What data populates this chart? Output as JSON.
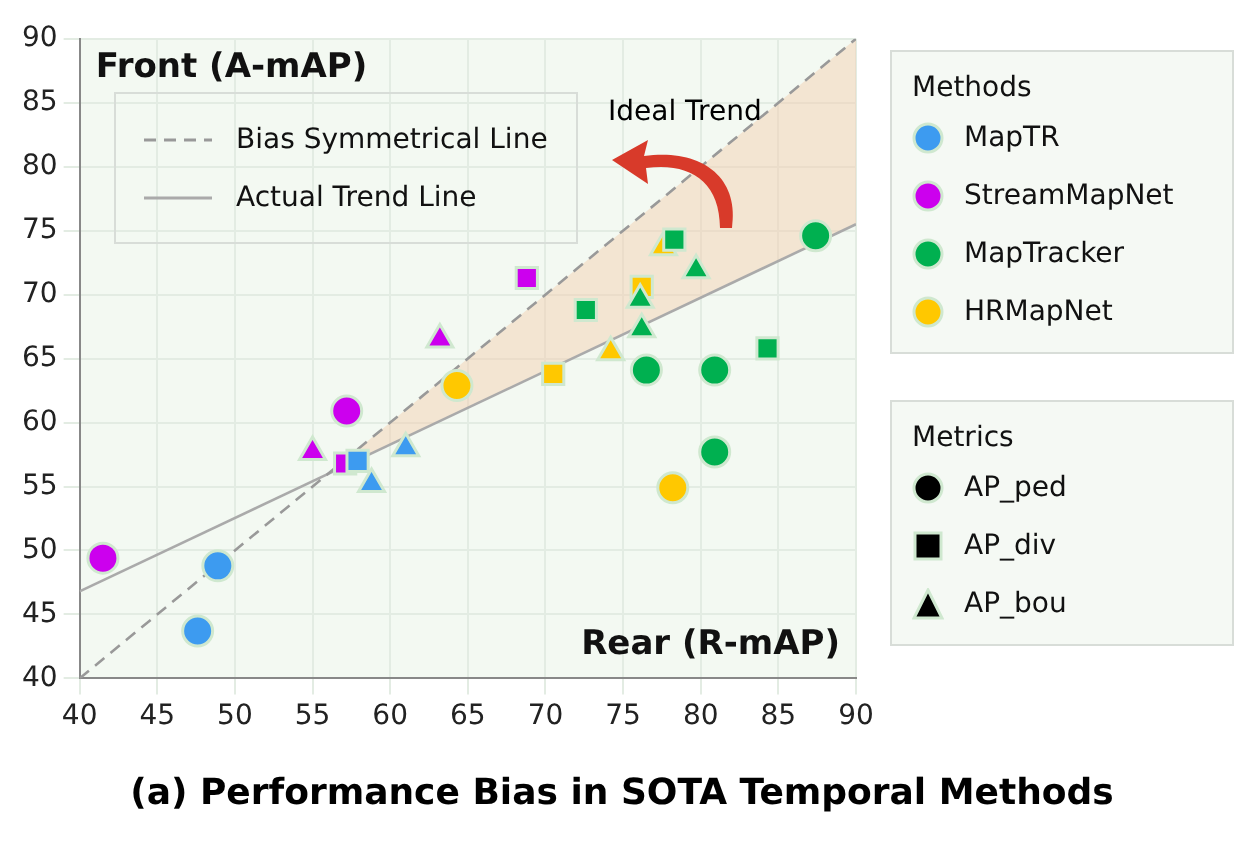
{
  "chart_data": {
    "type": "scatter",
    "title": "(a) Performance Bias in SOTA Temporal Methods",
    "xlabel": "Rear (R-mAP)",
    "ylabel": "Front (A-mAP)",
    "legend_title": "Methods",
    "annotations": [
      "Ideal Trend",
      "Metrics",
      "AP_ped",
      "AP_div",
      "AP_bou"
    ],
    "xlim": [
      40,
      90
    ],
    "xticks": [
      40,
      45,
      50,
      55,
      60,
      65,
      70,
      75,
      80,
      85,
      90
    ],
    "ylim": [
      40,
      90
    ],
    "yticks": [
      40,
      45,
      50,
      55,
      60,
      65,
      70,
      75,
      80,
      85,
      90
    ],
    "grid": true,
    "legend": "right",
    "series": [
      {
        "name": "Bias Symmetrical Line",
        "type": "line",
        "line_style": "dashed",
        "color": "#999999",
        "x": [
          40,
          56,
          90
        ],
        "values": [
          40,
          56,
          90
        ],
        "lower": [
          null,
          56,
          75.5
        ],
        "upper": [
          null,
          56,
          90
        ]
      },
      {
        "name": "Actual Trend Line",
        "type": "line",
        "line_style": "solid",
        "color": "#aaaaaa",
        "x": [
          40,
          90
        ],
        "values": [
          46.8,
          75.5
        ]
      },
      {
        "name": "MapTR",
        "color": "#3d9bf0",
        "marker": "circle",
        "x": [
          48.9,
          47.6
        ],
        "values": [
          48.8,
          43.7
        ]
      },
      {
        "color": "#3d9bf0",
        "marker": "square",
        "x": [
          57.9
        ],
        "values": [
          57.0
        ]
      },
      {
        "color": "#3d9bf0",
        "marker": "triangle",
        "x": [
          58.8,
          61.0
        ],
        "values": [
          55.2,
          58.0
        ]
      },
      {
        "name": "StreamMapNet",
        "color": "#cc00ee",
        "marker": "circle",
        "x": [
          41.5,
          57.2
        ],
        "values": [
          49.4,
          60.9
        ]
      },
      {
        "color": "#cc00ee",
        "marker": "square",
        "x": [
          57.1,
          68.8
        ],
        "values": [
          56.8,
          71.3
        ]
      },
      {
        "color": "#cc00ee",
        "marker": "triangle",
        "x": [
          55.0,
          63.2
        ],
        "values": [
          57.7,
          66.5
        ]
      },
      {
        "name": "MapTracker",
        "color": "#00b050",
        "marker": "circle",
        "x": [
          87.4,
          76.5,
          80.9,
          80.9
        ],
        "values": [
          74.6,
          64.1,
          64.1,
          57.7
        ]
      },
      {
        "color": "#00b050",
        "marker": "square",
        "x": [
          78.3,
          72.6,
          84.3
        ],
        "values": [
          74.3,
          68.8,
          65.8
        ]
      },
      {
        "color": "#00b050",
        "marker": "triangle",
        "x": [
          79.7,
          76.1,
          76.2
        ],
        "values": [
          71.9,
          69.6,
          67.3
        ]
      },
      {
        "name": "HRMapNet",
        "color": "#ffc800",
        "marker": "circle",
        "x": [
          64.3,
          78.2
        ],
        "values": [
          62.9,
          54.9
        ]
      },
      {
        "color": "#ffc800",
        "marker": "square",
        "x": [
          76.2,
          70.5
        ],
        "values": [
          70.6,
          63.8
        ]
      },
      {
        "color": "#ffc800",
        "marker": "triangle",
        "x": [
          77.6,
          74.2
        ],
        "values": [
          73.7,
          65.5
        ]
      }
    ]
  }
}
